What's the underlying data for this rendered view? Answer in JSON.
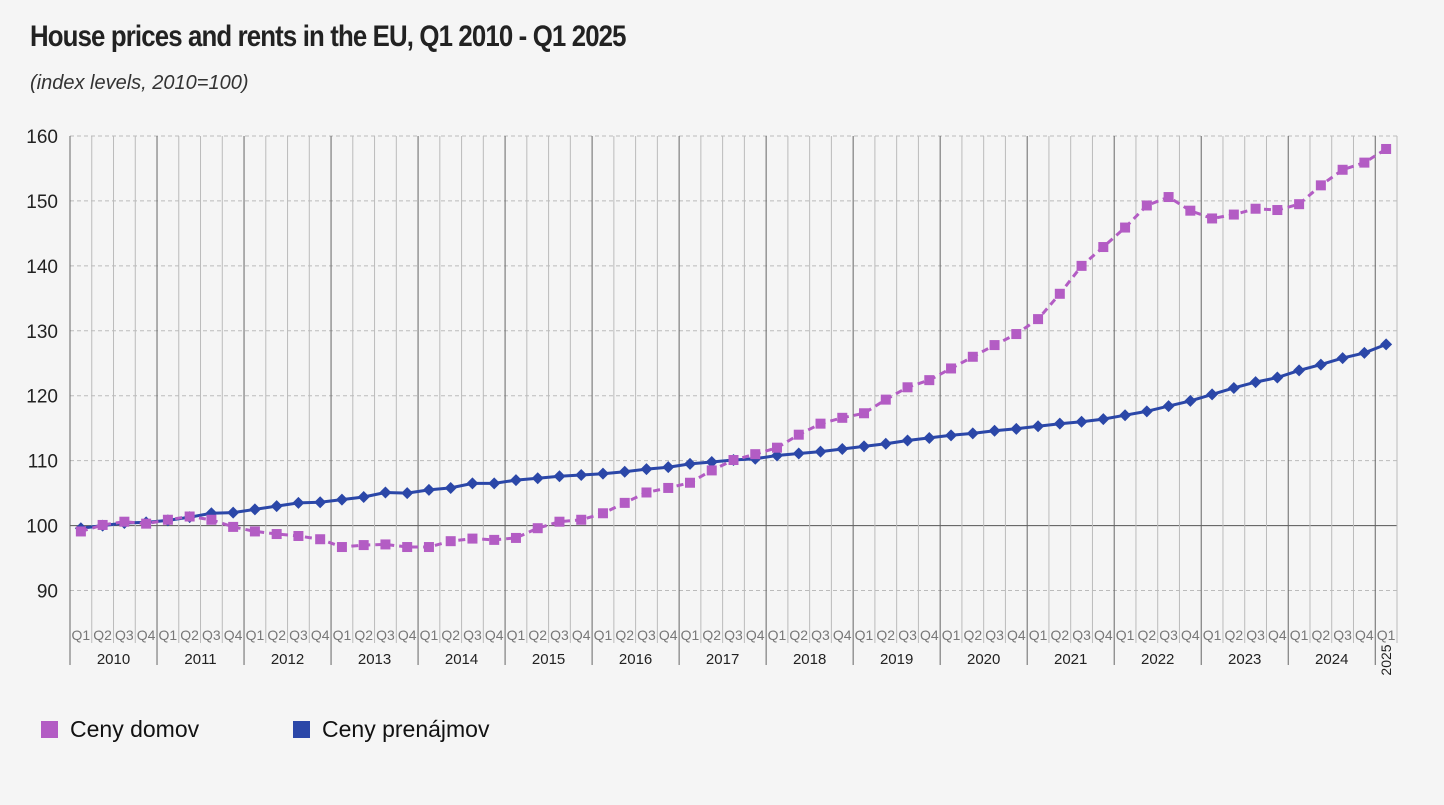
{
  "chart_data": {
    "type": "line",
    "title": "House prices and rents in the EU, Q1 2010 - Q1 2025",
    "subtitle": "(index levels, 2010=100)",
    "xlabel": "",
    "ylabel": "",
    "ylim": [
      85,
      160
    ],
    "yticks": [
      90,
      100,
      110,
      120,
      130,
      140,
      150,
      160
    ],
    "grid": true,
    "quarter_labels": [
      "Q1",
      "Q2",
      "Q3",
      "Q4"
    ],
    "years": [
      "2010",
      "2011",
      "2012",
      "2013",
      "2014",
      "2015",
      "2016",
      "2017",
      "2018",
      "2019",
      "2020",
      "2021",
      "2022",
      "2023",
      "2024",
      "2025"
    ],
    "legend_position": "bottom-left",
    "series": [
      {
        "name": "Ceny domov",
        "color": "#b35cc4",
        "marker": "square",
        "dashed": true,
        "values": [
          99.1,
          100.1,
          100.6,
          100.3,
          100.9,
          101.4,
          100.9,
          99.8,
          99.1,
          98.7,
          98.4,
          97.9,
          96.7,
          97.0,
          97.1,
          96.7,
          96.7,
          97.6,
          98.0,
          97.8,
          98.1,
          99.6,
          100.6,
          100.9,
          101.9,
          103.5,
          105.1,
          105.8,
          106.6,
          108.5,
          110.1,
          111.0,
          112.0,
          114.0,
          115.7,
          116.6,
          117.3,
          119.4,
          121.3,
          122.4,
          124.2,
          126.0,
          127.8,
          129.5,
          131.8,
          135.7,
          140.0,
          142.9,
          145.9,
          149.3,
          150.6,
          148.5,
          147.3,
          147.9,
          148.8,
          148.6,
          149.5,
          152.4,
          154.8,
          155.9,
          158.0
        ]
      },
      {
        "name": "Ceny prenájmov",
        "color": "#2b47a8",
        "marker": "diamond",
        "dashed": false,
        "values": [
          99.6,
          100.0,
          100.4,
          100.5,
          100.8,
          101.3,
          101.9,
          102.0,
          102.5,
          103.0,
          103.5,
          103.6,
          104.0,
          104.4,
          105.1,
          105.0,
          105.5,
          105.8,
          106.5,
          106.5,
          107.0,
          107.3,
          107.6,
          107.8,
          108.0,
          108.3,
          108.7,
          109.0,
          109.5,
          109.8,
          110.1,
          110.3,
          110.8,
          111.1,
          111.4,
          111.8,
          112.2,
          112.6,
          113.1,
          113.5,
          113.9,
          114.2,
          114.6,
          114.9,
          115.3,
          115.7,
          116.0,
          116.4,
          117.0,
          117.6,
          118.4,
          119.2,
          120.2,
          121.2,
          122.1,
          122.8,
          123.9,
          124.8,
          125.8,
          126.6,
          127.9
        ]
      }
    ]
  }
}
